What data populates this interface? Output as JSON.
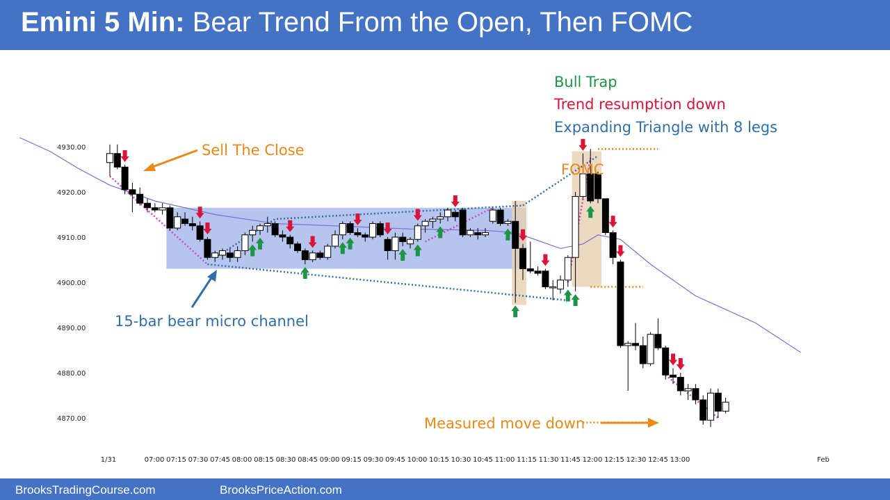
{
  "header": {
    "title_bold": "Emini 5 Min:",
    "title_rest": "Bear Trend From the Open, Then FOMC"
  },
  "footer": {
    "left": "BrooksTradingCourse.com",
    "right": "BrooksPriceAction.com"
  },
  "colors": {
    "header_bg": "#4472c4",
    "bull_arrow": "#1e9448",
    "bear_arrow": "#d8143a",
    "range_box": "#a4b6ea",
    "fomc_band": "#e7cfb3",
    "ema": "#7570d8",
    "magenta_line": "#d040d0",
    "blue_dotted": "#2f6fa6",
    "orange": "#e8891a"
  },
  "annotations": {
    "sell_the_close": "Sell The Close",
    "micro_channel": "15-bar bear micro channel",
    "fomc": "FOMC",
    "bull_trap": "Bull Trap",
    "trend_resumption": "Trend resumption down",
    "expanding_triangle": "Expanding Triangle with 8 legs",
    "measured_move": "Measured move down"
  },
  "chart_data": {
    "type": "candlestick",
    "title": "Emini 5 Min: Bear Trend From the Open, Then FOMC",
    "y_ticks": [
      "4930.00",
      "4920.00",
      "4910.00",
      "4900.00",
      "4890.00",
      "4880.00",
      "4870.00"
    ],
    "ylim": [
      4866,
      4932
    ],
    "x_ticks": [
      "1/31",
      "07:00",
      "07:15",
      "07:30",
      "07:45",
      "08:00",
      "08:15",
      "08:30",
      "08:45",
      "09:00",
      "09:15",
      "09:30",
      "09:45",
      "10:00",
      "10:15",
      "10:30",
      "10:45",
      "11:00",
      "11:15",
      "11:30",
      "11:45",
      "12:00",
      "12:15",
      "12:30",
      "12:45",
      "13:00",
      "Feb"
    ],
    "grid": false,
    "bars": [
      {
        "o": 4926.5,
        "h": 4930.5,
        "l": 4923.5,
        "c": 4928.5
      },
      {
        "o": 4928.5,
        "h": 4930.5,
        "l": 4925.0,
        "c": 4925.5
      },
      {
        "o": 4925.5,
        "h": 4926.0,
        "l": 4919.5,
        "c": 4920.5
      },
      {
        "o": 4920.5,
        "h": 4922.0,
        "l": 4915.5,
        "c": 4919.5
      },
      {
        "o": 4919.5,
        "h": 4921.0,
        "l": 4917.0,
        "c": 4917.5
      },
      {
        "o": 4917.5,
        "h": 4918.5,
        "l": 4915.5,
        "c": 4916.5
      },
      {
        "o": 4916.5,
        "h": 4917.5,
        "l": 4915.5,
        "c": 4916.0
      },
      {
        "o": 4916.0,
        "h": 4917.5,
        "l": 4915.0,
        "c": 4916.5
      },
      {
        "o": 4916.5,
        "h": 4917.0,
        "l": 4911.5,
        "c": 4912.0
      },
      {
        "o": 4912.0,
        "h": 4915.5,
        "l": 4911.5,
        "c": 4914.5
      },
      {
        "o": 4914.0,
        "h": 4915.5,
        "l": 4912.5,
        "c": 4913.0
      },
      {
        "o": 4913.0,
        "h": 4914.5,
        "l": 4911.5,
        "c": 4912.5
      },
      {
        "o": 4912.5,
        "h": 4913.5,
        "l": 4909.0,
        "c": 4909.5
      },
      {
        "o": 4909.5,
        "h": 4910.0,
        "l": 4905.0,
        "c": 4905.5
      },
      {
        "o": 4905.5,
        "h": 4907.0,
        "l": 4904.5,
        "c": 4906.5
      },
      {
        "o": 4906.0,
        "h": 4907.5,
        "l": 4905.0,
        "c": 4907.0
      },
      {
        "o": 4906.5,
        "h": 4907.5,
        "l": 4904.5,
        "c": 4905.5
      },
      {
        "o": 4905.5,
        "h": 4908.0,
        "l": 4904.5,
        "c": 4907.0
      },
      {
        "o": 4907.0,
        "h": 4911.0,
        "l": 4906.0,
        "c": 4910.5
      },
      {
        "o": 4910.5,
        "h": 4912.5,
        "l": 4909.0,
        "c": 4911.5
      },
      {
        "o": 4911.5,
        "h": 4913.0,
        "l": 4910.5,
        "c": 4912.5
      },
      {
        "o": 4912.5,
        "h": 4914.5,
        "l": 4911.0,
        "c": 4913.0
      },
      {
        "o": 4913.0,
        "h": 4913.5,
        "l": 4910.0,
        "c": 4910.5
      },
      {
        "o": 4910.5,
        "h": 4911.5,
        "l": 4909.0,
        "c": 4910.0
      },
      {
        "o": 4910.0,
        "h": 4910.5,
        "l": 4907.5,
        "c": 4908.5
      },
      {
        "o": 4908.5,
        "h": 4909.0,
        "l": 4906.5,
        "c": 4907.0
      },
      {
        "o": 4907.0,
        "h": 4907.5,
        "l": 4904.0,
        "c": 4905.0
      },
      {
        "o": 4905.0,
        "h": 4907.0,
        "l": 4904.5,
        "c": 4906.5
      },
      {
        "o": 4906.5,
        "h": 4907.0,
        "l": 4905.0,
        "c": 4905.5
      },
      {
        "o": 4905.5,
        "h": 4908.5,
        "l": 4905.0,
        "c": 4908.0
      },
      {
        "o": 4908.0,
        "h": 4911.5,
        "l": 4907.5,
        "c": 4910.5
      },
      {
        "o": 4910.5,
        "h": 4913.5,
        "l": 4909.5,
        "c": 4913.0
      },
      {
        "o": 4913.0,
        "h": 4913.5,
        "l": 4910.5,
        "c": 4911.0
      },
      {
        "o": 4911.0,
        "h": 4912.0,
        "l": 4910.0,
        "c": 4910.5
      },
      {
        "o": 4910.5,
        "h": 4911.0,
        "l": 4909.0,
        "c": 4910.0
      },
      {
        "o": 4910.0,
        "h": 4913.5,
        "l": 4909.5,
        "c": 4913.0
      },
      {
        "o": 4913.0,
        "h": 4913.5,
        "l": 4910.0,
        "c": 4910.5
      },
      {
        "o": 4909.5,
        "h": 4910.0,
        "l": 4905.0,
        "c": 4907.0
      },
      {
        "o": 4907.0,
        "h": 4911.0,
        "l": 4905.0,
        "c": 4910.0
      },
      {
        "o": 4910.0,
        "h": 4911.0,
        "l": 4908.0,
        "c": 4909.0
      },
      {
        "o": 4908.5,
        "h": 4910.0,
        "l": 4907.5,
        "c": 4909.5
      },
      {
        "o": 4909.5,
        "h": 4913.0,
        "l": 4909.0,
        "c": 4912.5
      },
      {
        "o": 4912.5,
        "h": 4914.0,
        "l": 4911.0,
        "c": 4913.5
      },
      {
        "o": 4913.5,
        "h": 4914.5,
        "l": 4912.0,
        "c": 4914.0
      },
      {
        "o": 4914.0,
        "h": 4915.5,
        "l": 4913.0,
        "c": 4914.5
      },
      {
        "o": 4914.5,
        "h": 4916.5,
        "l": 4913.5,
        "c": 4916.0
      },
      {
        "o": 4915.5,
        "h": 4916.0,
        "l": 4913.5,
        "c": 4914.5
      },
      {
        "o": 4916.0,
        "h": 4916.5,
        "l": 4910.0,
        "c": 4910.5
      },
      {
        "o": 4910.5,
        "h": 4912.0,
        "l": 4910.0,
        "c": 4911.5
      },
      {
        "o": 4911.0,
        "h": 4912.0,
        "l": 4909.5,
        "c": 4910.5
      },
      {
        "o": 4910.5,
        "h": 4912.0,
        "l": 4910.0,
        "c": 4911.0
      },
      {
        "o": 4913.5,
        "h": 4916.5,
        "l": 4913.0,
        "c": 4916.0
      },
      {
        "o": 4916.0,
        "h": 4916.5,
        "l": 4912.5,
        "c": 4913.0
      },
      {
        "o": 4913.0,
        "h": 4914.0,
        "l": 4912.5,
        "c": 4913.5
      },
      {
        "o": 4913.5,
        "h": 4918.0,
        "l": 4895.5,
        "c": 4907.5
      },
      {
        "o": 4907.5,
        "h": 4908.5,
        "l": 4900.5,
        "c": 4903.0
      },
      {
        "o": 4903.0,
        "h": 4909.0,
        "l": 4902.0,
        "c": 4902.5
      },
      {
        "o": 4902.5,
        "h": 4903.5,
        "l": 4901.5,
        "c": 4902.0
      },
      {
        "o": 4902.5,
        "h": 4903.0,
        "l": 4898.5,
        "c": 4899.0
      },
      {
        "o": 4899.0,
        "h": 4900.5,
        "l": 4896.0,
        "c": 4899.0
      },
      {
        "o": 4898.5,
        "h": 4901.5,
        "l": 4897.5,
        "c": 4900.5
      },
      {
        "o": 4900.5,
        "h": 4906.0,
        "l": 4899.0,
        "c": 4905.5
      },
      {
        "o": 4905.5,
        "h": 4920.0,
        "l": 4898.0,
        "c": 4919.0
      },
      {
        "o": 4919.0,
        "h": 4928.5,
        "l": 4918.5,
        "c": 4924.0
      },
      {
        "o": 4924.0,
        "h": 4929.5,
        "l": 4917.5,
        "c": 4918.0
      },
      {
        "o": 4924.0,
        "h": 4924.5,
        "l": 4917.5,
        "c": 4918.5
      },
      {
        "o": 4918.5,
        "h": 4918.5,
        "l": 4910.5,
        "c": 4911.0
      },
      {
        "o": 4911.0,
        "h": 4911.5,
        "l": 4904.0,
        "c": 4905.5
      },
      {
        "o": 4904.5,
        "h": 4905.0,
        "l": 4885.5,
        "c": 4886.0
      },
      {
        "o": 4886.0,
        "h": 4887.0,
        "l": 4876.0,
        "c": 4886.5
      },
      {
        "o": 4886.5,
        "h": 4891.0,
        "l": 4885.0,
        "c": 4886.0
      },
      {
        "o": 4886.0,
        "h": 4888.0,
        "l": 4881.0,
        "c": 4882.0
      },
      {
        "o": 4882.0,
        "h": 4889.0,
        "l": 4881.5,
        "c": 4888.5
      },
      {
        "o": 4888.5,
        "h": 4892.0,
        "l": 4885.0,
        "c": 4885.5
      },
      {
        "o": 4885.5,
        "h": 4886.0,
        "l": 4878.5,
        "c": 4879.5
      },
      {
        "o": 4879.5,
        "h": 4881.0,
        "l": 4877.5,
        "c": 4879.0
      },
      {
        "o": 4879.0,
        "h": 4880.0,
        "l": 4875.0,
        "c": 4876.0
      },
      {
        "o": 4876.0,
        "h": 4877.5,
        "l": 4874.0,
        "c": 4876.5
      },
      {
        "o": 4876.5,
        "h": 4877.5,
        "l": 4873.0,
        "c": 4874.0
      },
      {
        "o": 4874.0,
        "h": 4875.0,
        "l": 4868.5,
        "c": 4869.5
      },
      {
        "o": 4869.5,
        "h": 4876.5,
        "l": 4868.0,
        "c": 4875.5
      },
      {
        "o": 4875.5,
        "h": 4876.5,
        "l": 4870.0,
        "c": 4871.5
      },
      {
        "o": 4871.5,
        "h": 4874.5,
        "l": 4871.0,
        "c": 4873.5
      }
    ],
    "ema": [
      [
        -12,
        4932
      ],
      [
        -8,
        4929
      ],
      [
        -4,
        4925
      ],
      [
        0,
        4921.5
      ],
      [
        6,
        4918
      ],
      [
        14,
        4915
      ],
      [
        22,
        4913
      ],
      [
        30,
        4912.5
      ],
      [
        40,
        4911.8
      ],
      [
        50,
        4911.5
      ],
      [
        54,
        4911
      ],
      [
        60,
        4907.5
      ],
      [
        63,
        4908.5
      ],
      [
        65,
        4910.5
      ],
      [
        68,
        4909.5
      ],
      [
        72,
        4904
      ],
      [
        78,
        4897
      ],
      [
        86,
        4891
      ],
      [
        92,
        4884.5
      ]
    ],
    "range_box": {
      "from_bar": 8,
      "to_bar": 55,
      "top": 4916.5,
      "bottom": 4903
    },
    "fomc_band": {
      "from_bar": 54,
      "to_bar": 55,
      "top": 4918,
      "bottom": 4895
    },
    "trap_band": {
      "from_bar": 62,
      "to_bar": 65,
      "top": 4929,
      "bottom": 4899
    },
    "bear_arrows": [
      2,
      12,
      13,
      24,
      27,
      33,
      37,
      41,
      46,
      55,
      58,
      63,
      67,
      68,
      75,
      76
    ],
    "bull_arrows": [
      19,
      20,
      26,
      31,
      32,
      39,
      41,
      44,
      53,
      54,
      61,
      62,
      64
    ],
    "magenta_lines": [
      [
        [
          0,
          4923.5
        ],
        [
          13,
          4904
        ]
      ],
      [
        [
          42,
          4909
        ],
        [
          51,
          4916.5
        ]
      ],
      [
        [
          61,
          4900
        ],
        [
          64,
          4927.5
        ]
      ],
      [
        [
          74,
          4879.5
        ],
        [
          81,
          4870
        ]
      ]
    ],
    "blue_dotted_lines": [
      [
        [
          14,
          4905.5
        ],
        [
          22,
          4914
        ],
        [
          55,
          4917
        ]
      ],
      [
        [
          55,
          4917
        ],
        [
          65,
          4928
        ]
      ],
      [
        [
          13,
          4904
        ],
        [
          61,
          4896
        ]
      ]
    ],
    "orange_dotted_lines": [
      [
        [
          65,
          4929.5
        ],
        [
          73,
          4929.5
        ]
      ],
      [
        [
          64,
          4899
        ],
        [
          71,
          4899
        ]
      ],
      [
        [
          63,
          4869
        ],
        [
          72,
          4869
        ]
      ]
    ]
  }
}
